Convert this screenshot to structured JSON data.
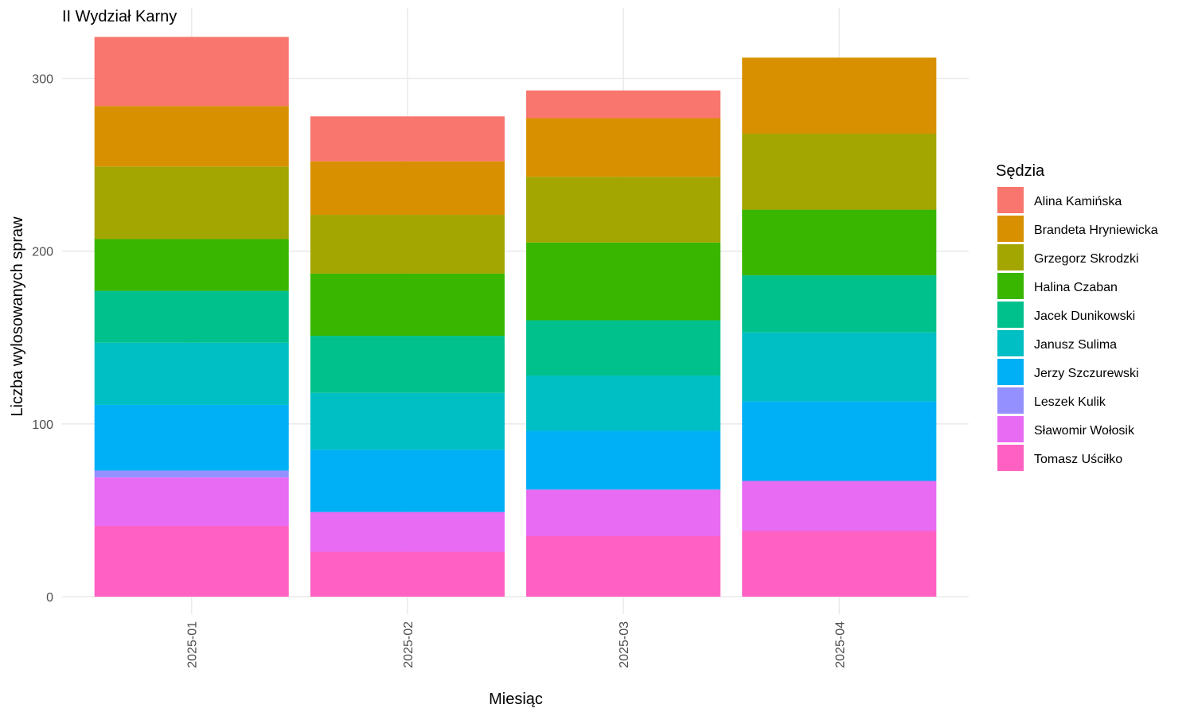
{
  "chart_data": {
    "type": "bar",
    "stacked": true,
    "title": "II Wydział Karny",
    "xlabel": "Miesiąc",
    "ylabel": "Liczba wylosowanych spraw",
    "ylim": [
      0,
      325
    ],
    "yticks": [
      0,
      100,
      200,
      300
    ],
    "grid": true,
    "legend_title": "Sędzia",
    "legend_position": "right",
    "categories": [
      "2025-01",
      "2025-02",
      "2025-03",
      "2025-04"
    ],
    "series": [
      {
        "name": "Tomasz Uściłko",
        "color": "#FF61C3",
        "values": [
          41,
          26,
          35,
          38
        ]
      },
      {
        "name": "Sławomir Wołosik",
        "color": "#E76BF3",
        "values": [
          28,
          23,
          27,
          29
        ]
      },
      {
        "name": "Leszek Kulik",
        "color": "#9590FF",
        "values": [
          4,
          0,
          0,
          0
        ]
      },
      {
        "name": "Jerzy Szczurewski",
        "color": "#00B0F6",
        "values": [
          38,
          36,
          34,
          46
        ]
      },
      {
        "name": "Janusz Sulima",
        "color": "#00BFC4",
        "values": [
          36,
          33,
          32,
          40
        ]
      },
      {
        "name": "Jacek Dunikowski",
        "color": "#00C08B",
        "values": [
          30,
          33,
          32,
          33
        ]
      },
      {
        "name": "Halina Czaban",
        "color": "#39B600",
        "values": [
          30,
          36,
          45,
          38
        ]
      },
      {
        "name": "Grzegorz Skrodzki",
        "color": "#A3A500",
        "values": [
          42,
          34,
          38,
          44
        ]
      },
      {
        "name": "Brandeta Hryniewicka",
        "color": "#D89000",
        "values": [
          35,
          31,
          34,
          44
        ]
      },
      {
        "name": "Alina Kamińska",
        "color": "#F8766D",
        "values": [
          40,
          26,
          16,
          0
        ]
      }
    ],
    "legend_order": [
      "Alina Kamińska",
      "Brandeta Hryniewicka",
      "Grzegorz Skrodzki",
      "Halina Czaban",
      "Jacek Dunikowski",
      "Janusz Sulima",
      "Jerzy Szczurewski",
      "Leszek Kulik",
      "Sławomir Wołosik",
      "Tomasz Uściłko"
    ]
  }
}
